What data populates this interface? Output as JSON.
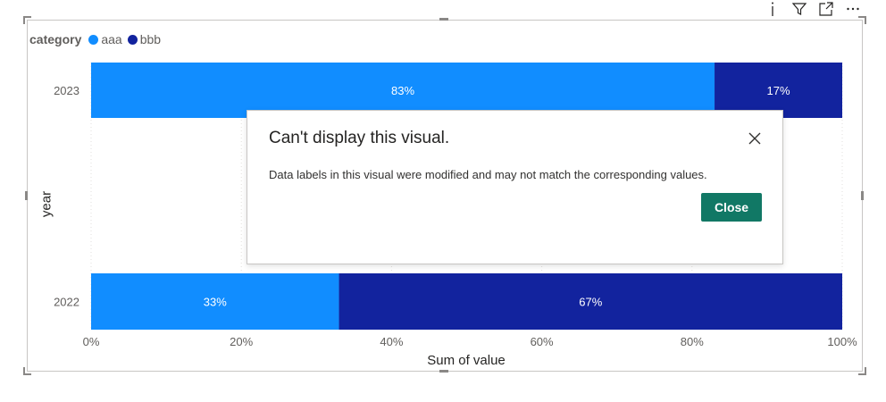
{
  "header_icons": [
    "info-icon",
    "filter-icon",
    "focus-mode-icon",
    "more-options-icon"
  ],
  "legend": {
    "title": "category",
    "items": [
      {
        "label": "aaa",
        "color": "#118dff"
      },
      {
        "label": "bbb",
        "color": "#12239e"
      }
    ]
  },
  "chart_data": {
    "type": "bar",
    "orientation": "horizontal",
    "stacked": "100%",
    "categories": [
      "2023",
      "2022"
    ],
    "series": [
      {
        "name": "aaa",
        "color": "#118dff",
        "values": [
          83,
          33
        ],
        "labels": [
          "83%",
          "33%"
        ]
      },
      {
        "name": "bbb",
        "color": "#12239e",
        "values": [
          17,
          67
        ],
        "labels": [
          "17%",
          "67%"
        ]
      }
    ],
    "xlabel": "Sum of value",
    "ylabel": "year",
    "xlim": [
      0,
      100
    ],
    "x_ticks": [
      "0%",
      "20%",
      "40%",
      "60%",
      "80%",
      "100%"
    ],
    "grid": true
  },
  "dialog": {
    "title": "Can't display this visual.",
    "message": "Data labels in this visual were modified and may not match the corresponding values.",
    "close_button": "Close"
  }
}
